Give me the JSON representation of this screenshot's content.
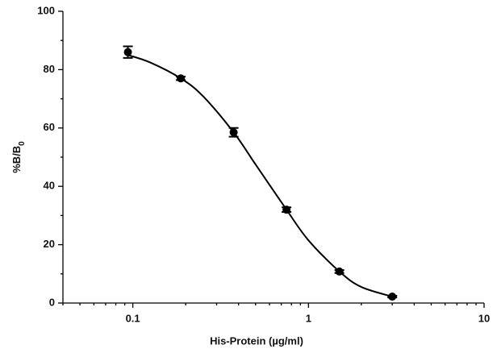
{
  "chart_data": {
    "type": "scatter",
    "x_label": "His-Protein (µg/ml)",
    "y_label": {
      "text": "%B/B",
      "subscript": "0"
    },
    "xscale": "log",
    "xlim": [
      0.04,
      10
    ],
    "xticks": [
      0.1,
      1,
      10
    ],
    "xminorticks": [
      0.04,
      0.05,
      0.06,
      0.07,
      0.08,
      0.09,
      0.2,
      0.3,
      0.4,
      0.5,
      0.6,
      0.7,
      0.8,
      0.9,
      2,
      3,
      4,
      5,
      6,
      7,
      8,
      9
    ],
    "ylim": [
      0,
      100
    ],
    "yticks": [
      0,
      20,
      40,
      60,
      80,
      100
    ],
    "yminorticks": [
      10,
      30,
      50,
      70,
      90
    ],
    "series": [
      {
        "color": "#000000",
        "x": [
          0.09375,
          0.1875,
          0.375,
          0.75,
          1.5,
          3
        ],
        "values": [
          86,
          77,
          58.5,
          32,
          10.8,
          2.2
        ],
        "errors": [
          2,
          0.6,
          1.5,
          0.8,
          0.5,
          0.3
        ]
      }
    ],
    "fit_curve": {
      "color": "#000000",
      "x": [
        0.09375,
        0.125,
        0.1875,
        0.25,
        0.375,
        0.5,
        0.75,
        1,
        1.5,
        2,
        3
      ],
      "values": [
        85,
        82.5,
        77,
        71,
        58.5,
        47.5,
        32,
        21.5,
        10.8,
        5.5,
        2.2
      ]
    }
  }
}
